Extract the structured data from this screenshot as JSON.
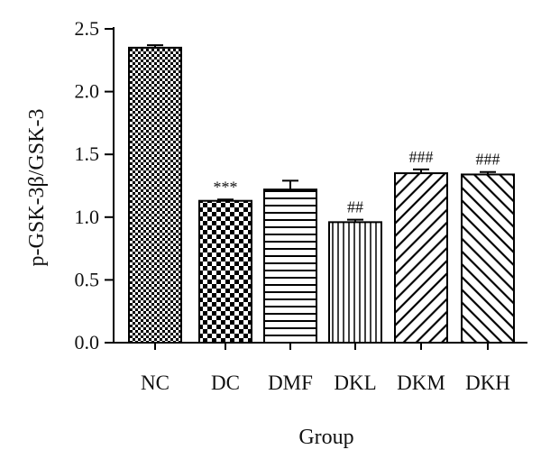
{
  "chart_data": {
    "type": "bar",
    "xlabel": "Group",
    "ylabel": "p-GSK-3β/GSK-3",
    "ylim": [
      0,
      2.5
    ],
    "yticks": [
      "0.0",
      "0.5",
      "1.0",
      "1.5",
      "2.0",
      "2.5"
    ],
    "ytick_values": [
      0,
      0.5,
      1.0,
      1.5,
      2.0,
      2.5
    ],
    "grid": false,
    "legend": "none",
    "bars": [
      {
        "category": "NC",
        "value": 2.35,
        "error": 0.02,
        "annotation": "",
        "pattern": "checker-fine"
      },
      {
        "category": "DC",
        "value": 1.13,
        "error": 0.01,
        "annotation": "***",
        "pattern": "checker-coarse"
      },
      {
        "category": "DMF",
        "value": 1.22,
        "error": 0.07,
        "annotation": "",
        "pattern": "horizontal-lines"
      },
      {
        "category": "DKL",
        "value": 0.96,
        "error": 0.02,
        "annotation": "##",
        "pattern": "vertical-lines"
      },
      {
        "category": "DKM",
        "value": 1.35,
        "error": 0.03,
        "annotation": "###",
        "pattern": "diagonal-forward"
      },
      {
        "category": "DKH",
        "value": 1.34,
        "error": 0.02,
        "annotation": "###",
        "pattern": "diagonal-backward"
      }
    ]
  }
}
